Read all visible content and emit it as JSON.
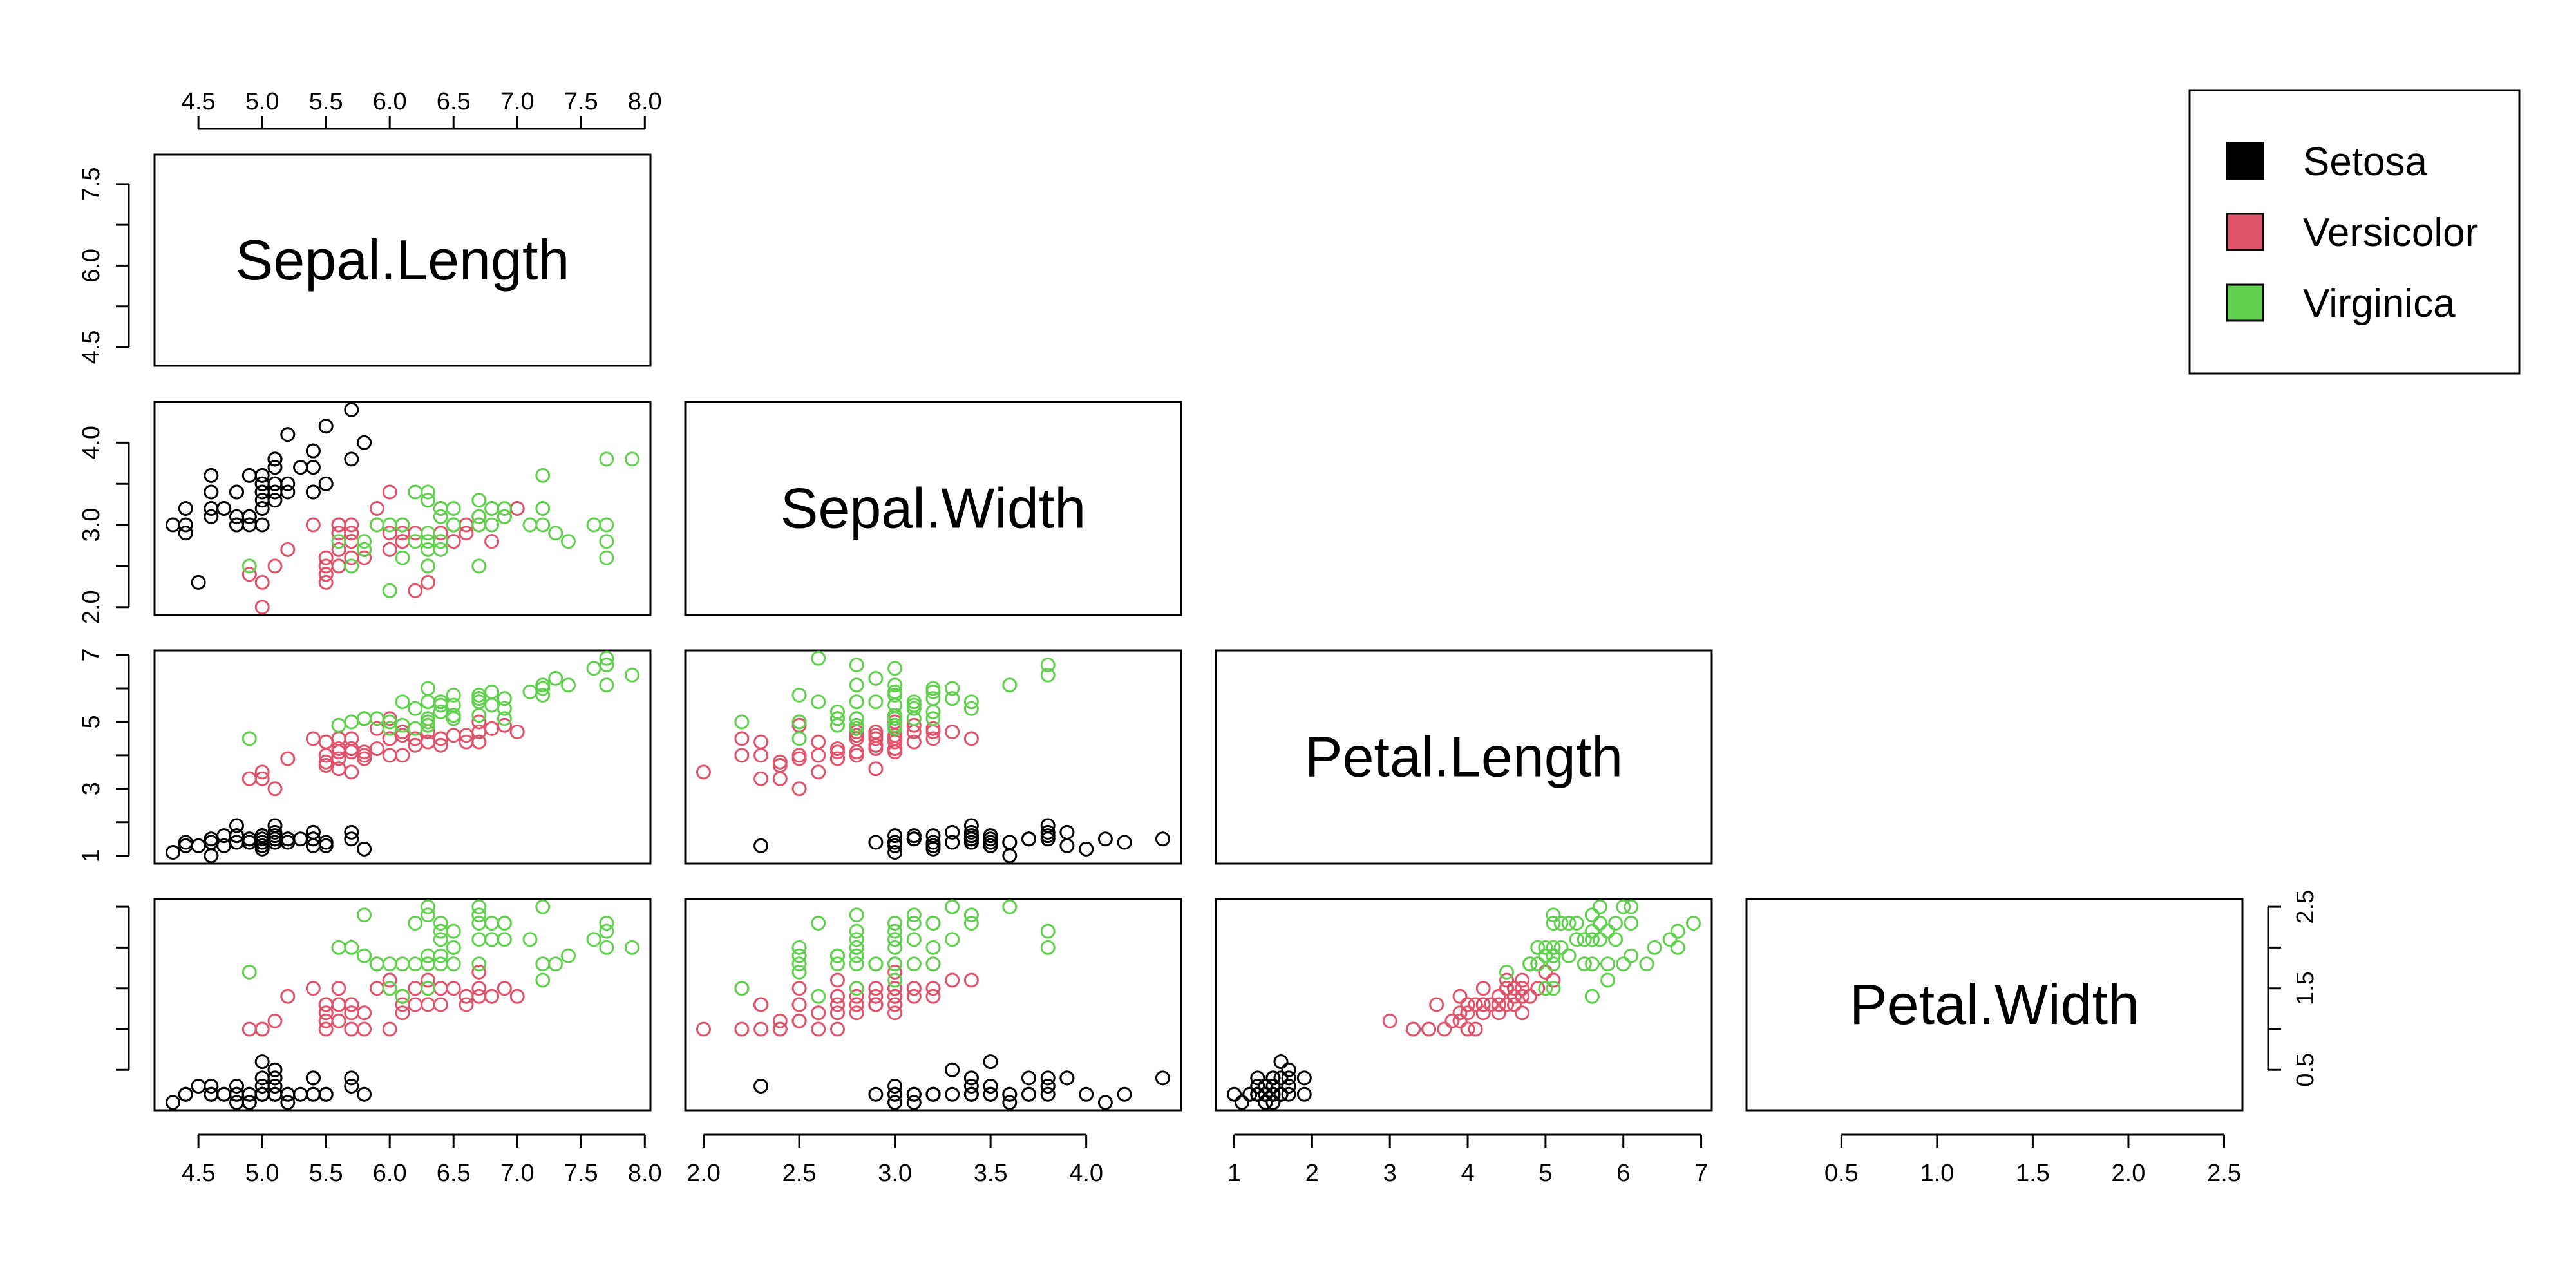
{
  "colors": {
    "Setosa": "#000000",
    "Versicolor": "#DF536B",
    "Virginica": "#61D04F"
  },
  "chart_data": {
    "type": "scatter",
    "subtype": "pairs",
    "variables": [
      "Sepal.Length",
      "Sepal.Width",
      "Petal.Length",
      "Petal.Width"
    ],
    "species": [
      "Setosa",
      "Versicolor",
      "Virginica"
    ],
    "legend": {
      "position": "top-right",
      "entries": [
        "Setosa",
        "Versicolor",
        "Virginica"
      ]
    },
    "axis_ranges": {
      "Sepal.Length": [
        4.3,
        7.9
      ],
      "Sepal.Width": [
        2.0,
        4.4
      ],
      "Petal.Length": [
        1.0,
        6.9
      ],
      "Petal.Width": [
        0.1,
        2.5
      ]
    },
    "ticks": {
      "Sepal.Length": [
        "4.5",
        "5.0",
        "5.5",
        "6.0",
        "6.5",
        "7.0",
        "7.5",
        "8.0"
      ],
      "Sepal.Length_left": [
        "4.5",
        "6.0",
        "7.5"
      ],
      "Sepal.Width": [
        "2.0",
        "2.5",
        "3.0",
        "3.5",
        "4.0"
      ],
      "Sepal.Width_left": [
        "2.0",
        "3.0",
        "4.0"
      ],
      "Petal.Length": [
        "1",
        "2",
        "3",
        "4",
        "5",
        "6",
        "7"
      ],
      "Petal.Length_left": [
        "1",
        "3",
        "5",
        "7"
      ],
      "Petal.Width": [
        "0.5",
        "1.0",
        "1.5",
        "2.0",
        "2.5"
      ],
      "Petal.Width_right": [
        "0.5",
        "1.5",
        "2.5"
      ]
    },
    "data": [
      [
        5.1,
        3.5,
        1.4,
        0.2,
        0
      ],
      [
        4.9,
        3.0,
        1.4,
        0.2,
        0
      ],
      [
        4.7,
        3.2,
        1.3,
        0.2,
        0
      ],
      [
        4.6,
        3.1,
        1.5,
        0.2,
        0
      ],
      [
        5.0,
        3.6,
        1.4,
        0.2,
        0
      ],
      [
        5.4,
        3.9,
        1.7,
        0.4,
        0
      ],
      [
        4.6,
        3.4,
        1.4,
        0.3,
        0
      ],
      [
        5.0,
        3.4,
        1.5,
        0.2,
        0
      ],
      [
        4.4,
        2.9,
        1.4,
        0.2,
        0
      ],
      [
        4.9,
        3.1,
        1.5,
        0.1,
        0
      ],
      [
        5.4,
        3.7,
        1.5,
        0.2,
        0
      ],
      [
        4.8,
        3.4,
        1.6,
        0.2,
        0
      ],
      [
        4.8,
        3.0,
        1.4,
        0.1,
        0
      ],
      [
        4.3,
        3.0,
        1.1,
        0.1,
        0
      ],
      [
        5.8,
        4.0,
        1.2,
        0.2,
        0
      ],
      [
        5.7,
        4.4,
        1.5,
        0.4,
        0
      ],
      [
        5.4,
        3.9,
        1.3,
        0.4,
        0
      ],
      [
        5.1,
        3.5,
        1.4,
        0.3,
        0
      ],
      [
        5.7,
        3.8,
        1.7,
        0.3,
        0
      ],
      [
        5.1,
        3.8,
        1.5,
        0.3,
        0
      ],
      [
        5.4,
        3.4,
        1.7,
        0.2,
        0
      ],
      [
        5.1,
        3.7,
        1.5,
        0.4,
        0
      ],
      [
        4.6,
        3.6,
        1.0,
        0.2,
        0
      ],
      [
        5.1,
        3.3,
        1.7,
        0.5,
        0
      ],
      [
        4.8,
        3.4,
        1.9,
        0.2,
        0
      ],
      [
        5.0,
        3.0,
        1.6,
        0.2,
        0
      ],
      [
        5.0,
        3.4,
        1.6,
        0.4,
        0
      ],
      [
        5.2,
        3.5,
        1.5,
        0.2,
        0
      ],
      [
        5.2,
        3.4,
        1.4,
        0.2,
        0
      ],
      [
        4.7,
        3.2,
        1.6,
        0.2,
        0
      ],
      [
        4.8,
        3.1,
        1.6,
        0.2,
        0
      ],
      [
        5.4,
        3.4,
        1.5,
        0.4,
        0
      ],
      [
        5.2,
        4.1,
        1.5,
        0.1,
        0
      ],
      [
        5.5,
        4.2,
        1.4,
        0.2,
        0
      ],
      [
        4.9,
        3.1,
        1.5,
        0.2,
        0
      ],
      [
        5.0,
        3.2,
        1.2,
        0.2,
        0
      ],
      [
        5.5,
        3.5,
        1.3,
        0.2,
        0
      ],
      [
        4.9,
        3.6,
        1.4,
        0.1,
        0
      ],
      [
        4.4,
        3.0,
        1.3,
        0.2,
        0
      ],
      [
        5.1,
        3.4,
        1.5,
        0.2,
        0
      ],
      [
        5.0,
        3.5,
        1.3,
        0.3,
        0
      ],
      [
        4.5,
        2.3,
        1.3,
        0.3,
        0
      ],
      [
        4.4,
        3.2,
        1.3,
        0.2,
        0
      ],
      [
        5.0,
        3.5,
        1.6,
        0.6,
        0
      ],
      [
        5.1,
        3.8,
        1.9,
        0.4,
        0
      ],
      [
        4.8,
        3.0,
        1.4,
        0.3,
        0
      ],
      [
        5.1,
        3.8,
        1.6,
        0.2,
        0
      ],
      [
        4.6,
        3.2,
        1.4,
        0.2,
        0
      ],
      [
        5.3,
        3.7,
        1.5,
        0.2,
        0
      ],
      [
        5.0,
        3.3,
        1.4,
        0.2,
        0
      ],
      [
        7.0,
        3.2,
        4.7,
        1.4,
        1
      ],
      [
        6.4,
        3.2,
        4.5,
        1.5,
        1
      ],
      [
        6.9,
        3.1,
        4.9,
        1.5,
        1
      ],
      [
        5.5,
        2.3,
        4.0,
        1.3,
        1
      ],
      [
        6.5,
        2.8,
        4.6,
        1.5,
        1
      ],
      [
        5.7,
        2.8,
        4.5,
        1.3,
        1
      ],
      [
        6.3,
        3.3,
        4.7,
        1.6,
        1
      ],
      [
        4.9,
        2.4,
        3.3,
        1.0,
        1
      ],
      [
        6.6,
        2.9,
        4.6,
        1.3,
        1
      ],
      [
        5.2,
        2.7,
        3.9,
        1.4,
        1
      ],
      [
        5.0,
        2.0,
        3.5,
        1.0,
        1
      ],
      [
        5.9,
        3.0,
        4.2,
        1.5,
        1
      ],
      [
        6.0,
        2.2,
        4.0,
        1.0,
        1
      ],
      [
        6.1,
        2.9,
        4.7,
        1.4,
        1
      ],
      [
        5.6,
        2.9,
        3.6,
        1.3,
        1
      ],
      [
        6.7,
        3.1,
        4.4,
        1.4,
        1
      ],
      [
        5.6,
        3.0,
        4.5,
        1.5,
        1
      ],
      [
        5.8,
        2.7,
        4.1,
        1.0,
        1
      ],
      [
        6.2,
        2.2,
        4.5,
        1.5,
        1
      ],
      [
        5.6,
        2.5,
        3.9,
        1.1,
        1
      ],
      [
        5.9,
        3.2,
        4.8,
        1.8,
        1
      ],
      [
        6.1,
        2.8,
        4.0,
        1.3,
        1
      ],
      [
        6.3,
        2.5,
        4.9,
        1.5,
        1
      ],
      [
        6.1,
        2.8,
        4.7,
        1.2,
        1
      ],
      [
        6.4,
        2.9,
        4.3,
        1.3,
        1
      ],
      [
        6.6,
        3.0,
        4.4,
        1.4,
        1
      ],
      [
        6.8,
        2.8,
        4.8,
        1.4,
        1
      ],
      [
        6.7,
        3.0,
        5.0,
        1.7,
        1
      ],
      [
        6.0,
        2.9,
        4.5,
        1.5,
        1
      ],
      [
        5.7,
        2.6,
        3.5,
        1.0,
        1
      ],
      [
        5.5,
        2.4,
        3.8,
        1.1,
        1
      ],
      [
        5.5,
        2.4,
        3.7,
        1.0,
        1
      ],
      [
        5.8,
        2.7,
        3.9,
        1.2,
        1
      ],
      [
        6.0,
        2.7,
        5.1,
        1.6,
        1
      ],
      [
        5.4,
        3.0,
        4.5,
        1.5,
        1
      ],
      [
        6.0,
        3.4,
        4.5,
        1.6,
        1
      ],
      [
        6.7,
        3.1,
        4.7,
        1.5,
        1
      ],
      [
        6.3,
        2.3,
        4.4,
        1.3,
        1
      ],
      [
        5.6,
        3.0,
        4.1,
        1.3,
        1
      ],
      [
        5.5,
        2.5,
        4.0,
        1.3,
        1
      ],
      [
        5.5,
        2.6,
        4.4,
        1.2,
        1
      ],
      [
        6.1,
        3.0,
        4.6,
        1.4,
        1
      ],
      [
        5.8,
        2.6,
        4.0,
        1.2,
        1
      ],
      [
        5.0,
        2.3,
        3.3,
        1.0,
        1
      ],
      [
        5.6,
        2.7,
        4.2,
        1.3,
        1
      ],
      [
        5.7,
        3.0,
        4.2,
        1.2,
        1
      ],
      [
        5.7,
        2.9,
        4.2,
        1.3,
        1
      ],
      [
        6.2,
        2.9,
        4.3,
        1.3,
        1
      ],
      [
        5.1,
        2.5,
        3.0,
        1.1,
        1
      ],
      [
        5.7,
        2.8,
        4.1,
        1.3,
        1
      ],
      [
        6.3,
        3.3,
        6.0,
        2.5,
        2
      ],
      [
        5.8,
        2.7,
        5.1,
        1.9,
        2
      ],
      [
        7.1,
        3.0,
        5.9,
        2.1,
        2
      ],
      [
        6.3,
        2.9,
        5.6,
        1.8,
        2
      ],
      [
        6.5,
        3.0,
        5.8,
        2.2,
        2
      ],
      [
        7.6,
        3.0,
        6.6,
        2.1,
        2
      ],
      [
        4.9,
        2.5,
        4.5,
        1.7,
        2
      ],
      [
        7.3,
        2.9,
        6.3,
        1.8,
        2
      ],
      [
        6.7,
        2.5,
        5.8,
        1.8,
        2
      ],
      [
        7.2,
        3.6,
        6.1,
        2.5,
        2
      ],
      [
        6.5,
        3.2,
        5.1,
        2.0,
        2
      ],
      [
        6.4,
        2.7,
        5.3,
        1.9,
        2
      ],
      [
        6.8,
        3.0,
        5.5,
        2.1,
        2
      ],
      [
        5.7,
        2.5,
        5.0,
        2.0,
        2
      ],
      [
        5.8,
        2.8,
        5.1,
        2.4,
        2
      ],
      [
        6.4,
        3.2,
        5.3,
        2.3,
        2
      ],
      [
        6.5,
        3.0,
        5.5,
        1.8,
        2
      ],
      [
        7.7,
        3.8,
        6.7,
        2.2,
        2
      ],
      [
        7.7,
        2.6,
        6.9,
        2.3,
        2
      ],
      [
        6.0,
        2.2,
        5.0,
        1.5,
        2
      ],
      [
        6.9,
        3.2,
        5.7,
        2.3,
        2
      ],
      [
        5.6,
        2.8,
        4.9,
        2.0,
        2
      ],
      [
        7.7,
        2.8,
        6.7,
        2.0,
        2
      ],
      [
        6.3,
        2.7,
        4.9,
        1.8,
        2
      ],
      [
        6.7,
        3.3,
        5.7,
        2.1,
        2
      ],
      [
        7.2,
        3.2,
        6.0,
        1.8,
        2
      ],
      [
        6.2,
        2.8,
        4.8,
        1.8,
        2
      ],
      [
        6.1,
        3.0,
        4.9,
        1.8,
        2
      ],
      [
        6.4,
        2.8,
        5.6,
        2.1,
        2
      ],
      [
        7.2,
        3.0,
        5.8,
        1.6,
        2
      ],
      [
        7.4,
        2.8,
        6.1,
        1.9,
        2
      ],
      [
        7.9,
        3.8,
        6.4,
        2.0,
        2
      ],
      [
        6.4,
        2.8,
        5.6,
        2.2,
        2
      ],
      [
        6.3,
        2.8,
        5.1,
        1.5,
        2
      ],
      [
        6.1,
        2.6,
        5.6,
        1.4,
        2
      ],
      [
        7.7,
        3.0,
        6.1,
        2.3,
        2
      ],
      [
        6.3,
        3.4,
        5.6,
        2.4,
        2
      ],
      [
        6.4,
        3.1,
        5.5,
        1.8,
        2
      ],
      [
        6.0,
        3.0,
        4.8,
        1.8,
        2
      ],
      [
        6.9,
        3.1,
        5.4,
        2.1,
        2
      ],
      [
        6.7,
        3.1,
        5.6,
        2.4,
        2
      ],
      [
        6.9,
        3.1,
        5.1,
        2.3,
        2
      ],
      [
        5.8,
        2.7,
        5.1,
        1.9,
        2
      ],
      [
        6.8,
        3.2,
        5.9,
        2.3,
        2
      ],
      [
        6.7,
        3.3,
        5.7,
        2.5,
        2
      ],
      [
        6.7,
        3.0,
        5.2,
        2.3,
        2
      ],
      [
        6.3,
        2.5,
        5.0,
        1.9,
        2
      ],
      [
        6.5,
        3.0,
        5.2,
        2.0,
        2
      ],
      [
        6.2,
        3.4,
        5.4,
        2.3,
        2
      ],
      [
        5.9,
        3.0,
        5.1,
        1.8,
        2
      ]
    ]
  }
}
